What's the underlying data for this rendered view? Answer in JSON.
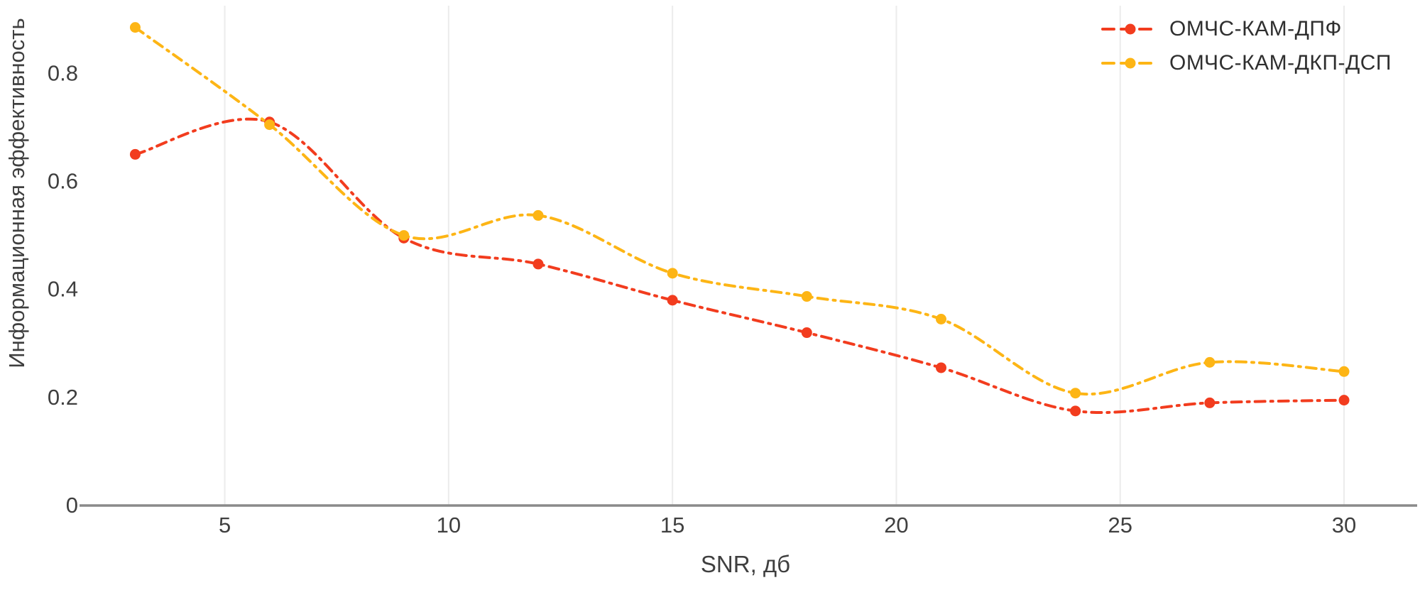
{
  "chart_data": {
    "type": "line",
    "title": "",
    "xlabel": "SNR, дб",
    "ylabel": "Информационная эффективность",
    "x": [
      3,
      6,
      9,
      12,
      15,
      18,
      21,
      24,
      27,
      30
    ],
    "series": [
      {
        "name": "ОМЧС-КАМ-ДПФ",
        "color": "#f23c1e",
        "values": [
          0.65,
          0.71,
          0.495,
          0.447,
          0.38,
          0.32,
          0.255,
          0.175,
          0.19,
          0.195
        ]
      },
      {
        "name": "ОМЧС-КАМ-ДКП-ДСП",
        "color": "#fdb515",
        "values": [
          0.885,
          0.705,
          0.5,
          0.537,
          0.43,
          0.387,
          0.345,
          0.208,
          0.265,
          0.248
        ]
      }
    ],
    "xticks": [
      5,
      10,
      15,
      20,
      25,
      30
    ],
    "yticks": [
      0,
      0.2,
      0.4,
      0.6,
      0.8
    ],
    "xlim": [
      2.2,
      31.3
    ],
    "ylim": [
      0,
      0.92
    ],
    "line_style": "dash-dot",
    "marker": "circle",
    "grid": "vertical-only",
    "legend_position": "top-right",
    "grid_color": "#ececec",
    "axis_color": "#8a8a8a",
    "text_color": "#3f3f3f"
  }
}
